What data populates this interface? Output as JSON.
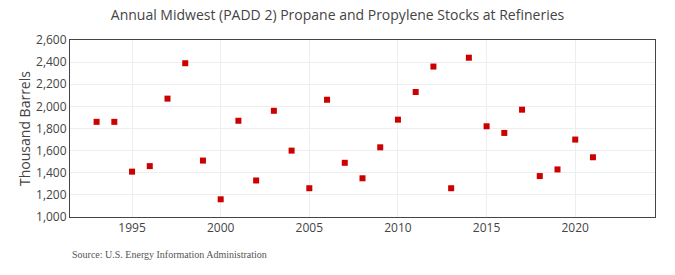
{
  "chart_data": {
    "type": "scatter",
    "title": "Annual Midwest (PADD 2) Propane and Propylene Stocks at Refineries",
    "ylabel": "Thousand Barrels",
    "annotations": [
      "Source: U.S. Energy Information Administration"
    ],
    "x": [
      1993,
      1994,
      1995,
      1996,
      1997,
      1998,
      1999,
      2000,
      2001,
      2002,
      2003,
      2004,
      2005,
      2006,
      2007,
      2008,
      2009,
      2010,
      2011,
      2012,
      2013,
      2014,
      2015,
      2016,
      2017,
      2018,
      2019,
      2020,
      2021
    ],
    "values": [
      1860,
      1860,
      1410,
      1460,
      2070,
      2390,
      1510,
      1160,
      1870,
      1330,
      1960,
      1600,
      1260,
      2060,
      1490,
      1350,
      1630,
      1880,
      2130,
      2360,
      1260,
      2440,
      1820,
      1760,
      1970,
      1370,
      1430,
      1700,
      1540
    ],
    "color": "#cc0000",
    "marker": "square",
    "xlim": [
      1991.5,
      2024.5
    ],
    "xticks": [
      1995,
      2000,
      2005,
      2010,
      2015,
      2020
    ],
    "ylim": [
      1000,
      2600
    ],
    "yticks": [
      {
        "value": 1000,
        "label": "1,000"
      },
      {
        "value": 1200,
        "label": "1,200"
      },
      {
        "value": 1400,
        "label": "1,400"
      },
      {
        "value": 1600,
        "label": "1,600"
      },
      {
        "value": 1800,
        "label": "1,800"
      },
      {
        "value": 2000,
        "label": "2,000"
      },
      {
        "value": 2200,
        "label": "2,200"
      },
      {
        "value": 2400,
        "label": "2,400"
      },
      {
        "value": 2600,
        "label": "2,600"
      }
    ],
    "grid": true
  }
}
